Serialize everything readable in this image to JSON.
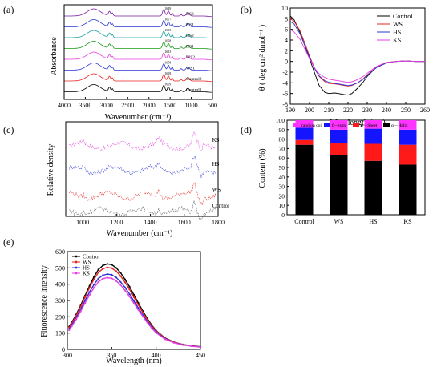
{
  "panels": {
    "a": "(a)",
    "b": "(b)",
    "c": "(c)",
    "d": "(d)",
    "e": "(e)"
  },
  "colors": {
    "control": "#000000",
    "ws": "#e8241f",
    "hs": "#2a36d8",
    "ks": "#e83ee0",
    "green": "#1a9a1a",
    "teal": "#1aa0a0"
  },
  "chart_data": [
    {
      "id": "a",
      "type": "line",
      "xlabel": "Wavenumber (cm⁻¹)",
      "ylabel": "Absorbance",
      "xticks": [
        "4000",
        "3500",
        "3000",
        "2500",
        "2000",
        "1500",
        "1000",
        "500"
      ],
      "xlim": [
        4000,
        500
      ],
      "series": [
        {
          "name": "KS2",
          "peak": "1649",
          "color": "#7a1fa2"
        },
        {
          "name": "KS1",
          "peak": "1657",
          "color": "#2a36d8"
        },
        {
          "name": "HS2",
          "peak": "1633",
          "color": "#1aa0a0"
        },
        {
          "name": "HS1",
          "peak": "1658",
          "color": "#1a9a1a"
        },
        {
          "name": "WS2",
          "peak": "1633",
          "color": "#e83ee0"
        },
        {
          "name": "WS1",
          "peak": "1658",
          "color": "#2a36d8"
        },
        {
          "name": "Control2",
          "peak": "1658",
          "color": "#e8241f"
        },
        {
          "name": "Control1",
          "peak": "1659",
          "color": "#000000"
        }
      ]
    },
    {
      "id": "b",
      "type": "line",
      "xlabel": "Wavelength (nm)",
      "ylabel": "θ ( deg cm² dmol⁻¹ )",
      "xlim": [
        190,
        260
      ],
      "ylim": [
        -8,
        10
      ],
      "xticks": [
        190,
        200,
        210,
        220,
        230,
        240,
        250,
        260
      ],
      "yticks": [
        10,
        8,
        6,
        4,
        2,
        0,
        -2,
        -4,
        -6,
        -8
      ],
      "legend": "top-right",
      "x": [
        190,
        192,
        195,
        198,
        200,
        203,
        205,
        208,
        210,
        213,
        215,
        218,
        220,
        222,
        225,
        228,
        230,
        235,
        240,
        245,
        250,
        255,
        260
      ],
      "series": [
        {
          "name": "Control",
          "color": "#000000",
          "values": [
            8.5,
            7.8,
            5.5,
            2.5,
            0.5,
            -2.5,
            -4.5,
            -5.8,
            -6.0,
            -5.9,
            -6.0,
            -6.2,
            -6.3,
            -6.0,
            -5.0,
            -3.8,
            -2.8,
            -1.0,
            -0.2,
            0.0,
            0.1,
            0.0,
            0.0
          ]
        },
        {
          "name": "WS",
          "color": "#e8241f",
          "values": [
            8.0,
            7.5,
            5.8,
            3.0,
            1.0,
            -1.5,
            -2.8,
            -3.8,
            -4.1,
            -4.2,
            -4.3,
            -4.5,
            -4.6,
            -4.5,
            -4.0,
            -3.2,
            -2.5,
            -1.0,
            -0.2,
            0.0,
            0.1,
            0.0,
            0.0
          ]
        },
        {
          "name": "HS",
          "color": "#2a36d8",
          "values": [
            7.5,
            7.0,
            5.2,
            2.6,
            0.8,
            -1.6,
            -2.7,
            -3.6,
            -3.9,
            -4.1,
            -4.2,
            -4.4,
            -4.5,
            -4.4,
            -4.0,
            -3.3,
            -2.6,
            -1.1,
            -0.3,
            0.0,
            0.1,
            0.0,
            0.0
          ]
        },
        {
          "name": "KS",
          "color": "#e83ee0",
          "values": [
            6.0,
            5.5,
            4.2,
            2.0,
            0.5,
            -1.4,
            -2.3,
            -3.0,
            -3.3,
            -3.5,
            -3.6,
            -3.8,
            -3.9,
            -3.8,
            -3.4,
            -2.8,
            -2.2,
            -0.9,
            -0.2,
            0.0,
            0.1,
            0.0,
            0.0
          ]
        }
      ]
    },
    {
      "id": "c",
      "type": "line",
      "xlabel": "Wavenumber (cm⁻¹)",
      "ylabel": "Relative density",
      "xlim": [
        900,
        1800
      ],
      "xticks": [
        1000,
        1200,
        1400,
        1600,
        1800
      ],
      "series": [
        {
          "name": "KS",
          "color": "#e83ee0"
        },
        {
          "name": "HS",
          "color": "#2a36d8"
        },
        {
          "name": "WS",
          "color": "#e8241f"
        },
        {
          "name": "Control",
          "color": "#555555"
        }
      ]
    },
    {
      "id": "d",
      "type": "bar",
      "ylabel": "Content (%)",
      "categories": [
        "Control",
        "WS",
        "HS",
        "KS"
      ],
      "ylim": [
        0,
        100
      ],
      "yticks": [
        0,
        10,
        20,
        30,
        40,
        50,
        60,
        70,
        80,
        90,
        100
      ],
      "legend": "top",
      "series": [
        {
          "name": "α—Helix",
          "color": "#000000",
          "values": [
            74,
            63,
            57,
            53
          ]
        },
        {
          "name": "β—Sheet",
          "color": "#ff1a1a",
          "values": [
            5,
            13,
            18,
            21
          ]
        },
        {
          "name": "β—turn",
          "color": "#1414ff",
          "values": [
            13,
            14,
            16,
            16
          ]
        },
        {
          "name": "random coil",
          "color": "#ff33ff",
          "values": [
            8,
            10,
            9,
            10
          ]
        }
      ]
    },
    {
      "id": "e",
      "type": "line",
      "xlabel": "Wavelength (nm)",
      "ylabel": "Fluorescence intensity",
      "xlim": [
        300,
        450
      ],
      "ylim": [
        0,
        600
      ],
      "xticks": [
        300,
        350,
        400,
        450
      ],
      "yticks": [
        0,
        100,
        200,
        300,
        400,
        500,
        600
      ],
      "legend": "top-left",
      "x": [
        302,
        305,
        310,
        315,
        320,
        325,
        330,
        335,
        340,
        345,
        350,
        355,
        360,
        365,
        370,
        375,
        380,
        385,
        390,
        395,
        400,
        410,
        420,
        430,
        440,
        450
      ],
      "series": [
        {
          "name": "Control",
          "color": "#000000",
          "values": [
            140,
            165,
            215,
            270,
            330,
            390,
            445,
            490,
            515,
            525,
            520,
            500,
            470,
            430,
            385,
            335,
            285,
            235,
            190,
            150,
            115,
            70,
            45,
            30,
            22,
            16
          ]
        },
        {
          "name": "WS",
          "color": "#e8241f",
          "values": [
            135,
            160,
            208,
            262,
            320,
            378,
            430,
            472,
            495,
            503,
            498,
            480,
            450,
            412,
            368,
            320,
            273,
            226,
            183,
            145,
            112,
            68,
            44,
            29,
            21,
            15
          ]
        },
        {
          "name": "HS",
          "color": "#2a36d8",
          "values": [
            125,
            150,
            195,
            245,
            300,
            352,
            398,
            435,
            455,
            462,
            458,
            441,
            414,
            380,
            340,
            297,
            254,
            211,
            172,
            137,
            106,
            65,
            42,
            28,
            20,
            15
          ]
        },
        {
          "name": "KS",
          "color": "#e83ee0",
          "values": [
            118,
            142,
            185,
            233,
            285,
            334,
            378,
            414,
            434,
            440,
            436,
            420,
            395,
            362,
            324,
            283,
            242,
            202,
            165,
            131,
            102,
            63,
            41,
            27,
            20,
            14
          ]
        }
      ]
    }
  ]
}
